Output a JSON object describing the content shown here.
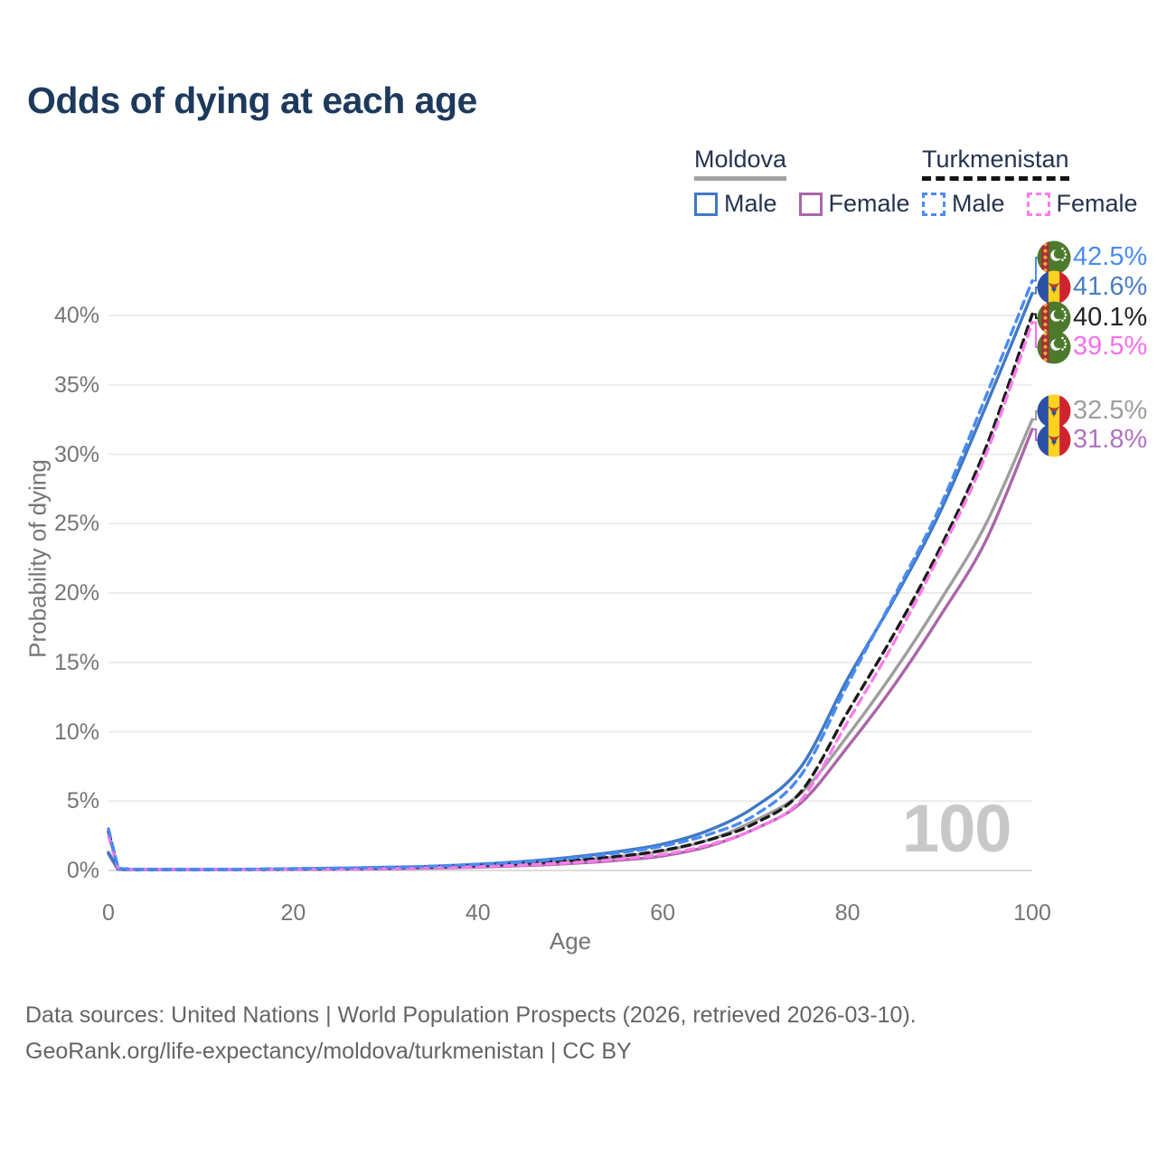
{
  "title": "Odds of dying at each age",
  "watermark": "100",
  "legend": {
    "position": "top-right",
    "groups": [
      {
        "country": "Moldova",
        "line_style": "solid",
        "underline_color": "#a3a3a3",
        "items": [
          {
            "label": "Male",
            "color": "#4079c4",
            "dashed": false
          },
          {
            "label": "Female",
            "color": "#aa66a8",
            "dashed": false
          }
        ]
      },
      {
        "country": "Turkmenistan",
        "line_style": "dashed",
        "underline_color": "#141414",
        "items": [
          {
            "label": "Male",
            "color": "#4b8bf2",
            "dashed": true
          },
          {
            "label": "Female",
            "color": "#fb7cec",
            "dashed": true
          }
        ]
      }
    ]
  },
  "end_labels": [
    {
      "series_id": "turkmenistan-male",
      "text": "42.5%",
      "value": 42.5,
      "color": "#4b8bf2",
      "flag": "turkmenistan",
      "y_hint": 285
    },
    {
      "series_id": "moldova-male",
      "text": "41.6%",
      "value": 41.6,
      "color": "#4a7ec0",
      "flag": "moldova",
      "y_hint": 318
    },
    {
      "series_id": "turkmenistan-both",
      "text": "40.1%",
      "value": 40.1,
      "color": "#232323",
      "flag": "turkmenistan",
      "y_hint": 352
    },
    {
      "series_id": "turkmenistan-female",
      "text": "39.5%",
      "value": 39.5,
      "color": "#fb6fe8",
      "flag": "turkmenistan",
      "y_hint": 384
    },
    {
      "series_id": "moldova-both",
      "text": "32.5%",
      "value": 32.5,
      "color": "#9e9e9e",
      "flag": "moldova",
      "y_hint": 455
    },
    {
      "series_id": "moldova-female",
      "text": "31.8%",
      "value": 31.8,
      "color": "#b273c0",
      "flag": "moldova",
      "y_hint": 487
    }
  ],
  "footer": {
    "line1": "Data sources: United Nations | World Population Prospects (2026, retrieved 2026-03-10).",
    "line2": "GeoRank.org/life-expectancy/moldova/turkmenistan | CC BY"
  },
  "chart_data": {
    "type": "line",
    "title": "Odds of dying at each age",
    "xlabel": "Age",
    "ylabel": "Probability of dying",
    "unit": "percent",
    "xlim": [
      0,
      100
    ],
    "ylim": [
      0,
      43
    ],
    "grid": true,
    "x_ticks": [
      {
        "value": 0,
        "label": "0"
      },
      {
        "value": 20,
        "label": "20"
      },
      {
        "value": 40,
        "label": "40"
      },
      {
        "value": 60,
        "label": "60"
      },
      {
        "value": 80,
        "label": "80"
      },
      {
        "value": 100,
        "label": "100"
      }
    ],
    "y_ticks": [
      {
        "value": 0,
        "label": "0%"
      },
      {
        "value": 5,
        "label": "5%"
      },
      {
        "value": 10,
        "label": "10%"
      },
      {
        "value": 15,
        "label": "15%"
      },
      {
        "value": 20,
        "label": "20%"
      },
      {
        "value": 25,
        "label": "25%"
      },
      {
        "value": 30,
        "label": "30%"
      },
      {
        "value": 35,
        "label": "35%"
      },
      {
        "value": 40,
        "label": "40%"
      }
    ],
    "x": [
      0,
      1,
      2,
      5,
      10,
      15,
      20,
      25,
      30,
      35,
      40,
      45,
      50,
      55,
      60,
      65,
      70,
      75,
      80,
      85,
      90,
      95,
      100
    ],
    "series": [
      {
        "id": "moldova-both",
        "name": "Moldova — Both sexes",
        "country": "Moldova",
        "sex": "both",
        "color": "#9e9e9e",
        "dashed": false,
        "end_value": 32.5,
        "values": [
          1.25,
          0.11,
          0.06,
          0.04,
          0.04,
          0.06,
          0.09,
          0.12,
          0.17,
          0.23,
          0.33,
          0.47,
          0.68,
          0.97,
          1.4,
          2.2,
          3.6,
          5.6,
          9.7,
          14.3,
          19.4,
          25.0,
          32.5
        ]
      },
      {
        "id": "moldova-female",
        "name": "Moldova — Female",
        "country": "Moldova",
        "sex": "female",
        "color": "#aa66a8",
        "dashed": false,
        "end_value": 31.8,
        "values": [
          1.2,
          0.1,
          0.05,
          0.03,
          0.03,
          0.05,
          0.07,
          0.09,
          0.12,
          0.17,
          0.24,
          0.35,
          0.5,
          0.72,
          1.05,
          1.75,
          3.0,
          4.9,
          8.9,
          13.3,
          18.3,
          23.8,
          31.8
        ]
      },
      {
        "id": "moldova-male",
        "name": "Moldova — Male",
        "country": "Moldova",
        "sex": "male",
        "color": "#4079c4",
        "dashed": false,
        "end_value": 41.6,
        "values": [
          1.3,
          0.12,
          0.07,
          0.05,
          0.05,
          0.08,
          0.12,
          0.16,
          0.22,
          0.3,
          0.45,
          0.65,
          0.95,
          1.35,
          1.9,
          2.9,
          4.6,
          7.5,
          13.8,
          19.5,
          25.8,
          33.5,
          41.6
        ]
      },
      {
        "id": "turkmenistan-both",
        "name": "Turkmenistan — Both sexes",
        "country": "Turkmenistan",
        "sex": "both",
        "color": "#1b1b1b",
        "dashed": true,
        "end_value": 40.1,
        "values": [
          2.8,
          0.26,
          0.1,
          0.06,
          0.06,
          0.08,
          0.11,
          0.14,
          0.19,
          0.26,
          0.36,
          0.5,
          0.72,
          1.0,
          1.45,
          2.2,
          3.4,
          5.7,
          11.4,
          17.0,
          23.2,
          30.5,
          40.1
        ]
      },
      {
        "id": "turkmenistan-female",
        "name": "Turkmenistan — Female",
        "country": "Turkmenistan",
        "sex": "female",
        "color": "#fb7cec",
        "dashed": true,
        "end_value": 39.5,
        "values": [
          2.5,
          0.22,
          0.09,
          0.05,
          0.05,
          0.07,
          0.09,
          0.11,
          0.15,
          0.21,
          0.28,
          0.4,
          0.56,
          0.8,
          1.15,
          1.85,
          3.0,
          5.1,
          10.7,
          16.4,
          22.8,
          30.0,
          39.5
        ]
      },
      {
        "id": "turkmenistan-male",
        "name": "Turkmenistan — Male",
        "country": "Turkmenistan",
        "sex": "male",
        "color": "#4b8bf2",
        "dashed": true,
        "end_value": 42.5,
        "values": [
          3.0,
          0.3,
          0.12,
          0.07,
          0.07,
          0.09,
          0.13,
          0.17,
          0.23,
          0.31,
          0.44,
          0.62,
          0.88,
          1.25,
          1.75,
          2.6,
          4.0,
          6.9,
          13.4,
          19.7,
          26.2,
          34.2,
          42.5
        ]
      }
    ]
  }
}
